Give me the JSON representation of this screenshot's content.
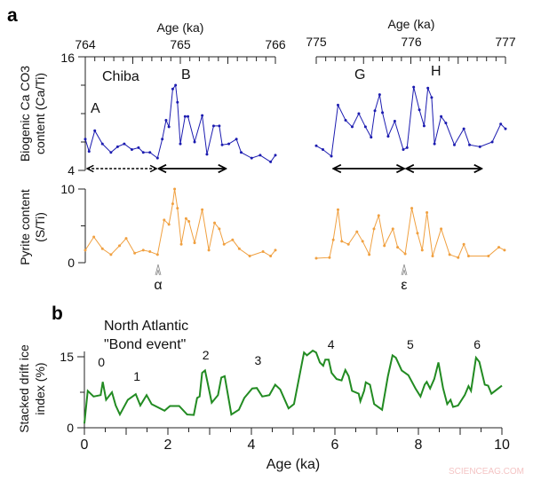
{
  "colors": {
    "ca": "#1c1cb0",
    "pyrite": "#f0a040",
    "drift": "#228b22"
  },
  "chart_data": [
    {
      "type": "line",
      "panel_label": "a",
      "title": "",
      "xlabel": "Age (ka)",
      "ylabel_line1": "Biogenic Ca CO3",
      "ylabel_line2": "content (Ca/Ti)",
      "xlim_left": [
        764,
        766
      ],
      "xlim_right": [
        775,
        777
      ],
      "ylim": [
        4,
        16
      ],
      "xticks_left": [
        "764",
        "765",
        "766"
      ],
      "xticks_right": [
        "775",
        "776",
        "777"
      ],
      "yticks": [
        "4",
        "16"
      ],
      "annotations": {
        "site": "Chiba",
        "A": "A",
        "B": "B",
        "G": "G",
        "H": "H"
      },
      "series": [
        {
          "segment": "left",
          "x": [
            764.0,
            764.04,
            764.1,
            764.18,
            764.27,
            764.34,
            764.41,
            764.49,
            764.56,
            764.61,
            764.68,
            764.76,
            764.81,
            764.85,
            764.88,
            764.92,
            764.95,
            764.97,
            765.0,
            765.05,
            765.08,
            765.15,
            765.23,
            765.28,
            765.35,
            765.41,
            765.44,
            765.51,
            765.59,
            765.64,
            765.75,
            765.84,
            765.95,
            766.0
          ],
          "y": [
            7.3,
            6.0,
            8.2,
            6.8,
            5.9,
            6.5,
            6.8,
            6.2,
            6.4,
            5.9,
            5.9,
            5.3,
            7.3,
            9.3,
            8.6,
            12.6,
            13.0,
            11.2,
            6.8,
            9.7,
            9.7,
            7.0,
            9.8,
            5.7,
            8.7,
            8.7,
            6.7,
            6.8,
            7.3,
            5.9,
            5.3,
            5.6,
            4.9,
            5.6
          ]
        },
        {
          "segment": "right",
          "x": [
            775.0,
            775.07,
            775.16,
            775.23,
            775.31,
            775.38,
            775.45,
            775.52,
            775.58,
            775.62,
            775.67,
            775.7,
            775.76,
            775.83,
            775.92,
            775.96,
            776.03,
            776.09,
            776.14,
            776.18,
            776.22,
            776.25,
            776.32,
            776.37,
            776.46,
            776.56,
            776.62,
            776.73,
            776.86,
            776.95,
            777.0
          ],
          "y": [
            6.6,
            6.2,
            5.5,
            10.9,
            9.3,
            8.6,
            10.0,
            8.6,
            7.5,
            10.3,
            12.0,
            10.1,
            7.6,
            9.2,
            6.2,
            6.4,
            12.8,
            10.4,
            8.7,
            12.7,
            11.7,
            6.8,
            9.7,
            9.0,
            6.7,
            8.4,
            6.7,
            6.5,
            7.0,
            8.9,
            8.4
          ]
        }
      ]
    },
    {
      "type": "line",
      "title": "",
      "ylabel_line1": "Pyrite content",
      "ylabel_line2": "(S/Ti)",
      "ylim": [
        0,
        10
      ],
      "yticks": [
        "0",
        "10"
      ],
      "markers": {
        "alpha": "α",
        "epsilon": "ε"
      },
      "series": [
        {
          "segment": "left",
          "x": [
            764.0,
            764.09,
            764.18,
            764.27,
            764.36,
            764.43,
            764.52,
            764.61,
            764.68,
            764.76,
            764.83,
            764.88,
            764.92,
            764.94,
            764.97,
            765.01,
            765.06,
            765.09,
            765.15,
            765.23,
            765.3,
            765.36,
            765.41,
            765.46,
            765.55,
            765.62,
            765.73,
            765.87,
            765.95,
            766.0
          ],
          "y": [
            1.7,
            3.5,
            1.9,
            1.1,
            2.3,
            3.3,
            1.3,
            1.7,
            1.5,
            1.1,
            5.8,
            5.2,
            8.0,
            10.0,
            7.4,
            2.5,
            6.0,
            5.6,
            2.7,
            7.2,
            1.7,
            5.4,
            4.6,
            2.5,
            3.1,
            1.9,
            0.9,
            1.5,
            0.9,
            1.7
          ]
        },
        {
          "segment": "right",
          "x": [
            775.0,
            775.14,
            775.18,
            775.23,
            775.27,
            775.34,
            775.43,
            775.49,
            775.56,
            775.61,
            775.66,
            775.72,
            775.81,
            775.86,
            775.94,
            776.01,
            776.07,
            776.12,
            776.17,
            776.23,
            776.32,
            776.41,
            776.5,
            776.56,
            776.61,
            776.82,
            776.93,
            776.99
          ],
          "y": [
            0.6,
            0.7,
            3.1,
            7.2,
            2.9,
            2.5,
            4.2,
            2.9,
            1.1,
            4.6,
            6.4,
            2.3,
            4.6,
            2.1,
            1.2,
            7.4,
            4.0,
            1.7,
            6.8,
            0.9,
            4.6,
            1.1,
            0.7,
            2.5,
            0.9,
            0.9,
            2.1,
            1.7
          ]
        }
      ]
    },
    {
      "type": "line",
      "panel_label": "b",
      "title_line1": "North Atlantic",
      "title_line2": "\"Bond event\"",
      "xlabel": "Age (ka)",
      "ylabel_line1": "Stacked drift ice",
      "ylabel_line2": "index (%)",
      "xlim": [
        0,
        10
      ],
      "ylim": [
        0,
        17
      ],
      "xticks": [
        "0",
        "2",
        "4",
        "6",
        "8",
        "10"
      ],
      "yticks": [
        "0",
        "15"
      ],
      "events": [
        {
          "label": "0",
          "x": 0.45
        },
        {
          "label": "1",
          "x": 1.3
        },
        {
          "label": "2",
          "x": 2.95
        },
        {
          "label": "3",
          "x": 4.2
        },
        {
          "label": "4",
          "x": 5.95
        },
        {
          "label": "5",
          "x": 7.85
        },
        {
          "label": "6",
          "x": 9.45
        }
      ],
      "series": [
        {
          "x": [
            0,
            0.08,
            0.22,
            0.39,
            0.44,
            0.52,
            0.66,
            0.75,
            0.85,
            1.04,
            1.23,
            1.34,
            1.49,
            1.61,
            1.92,
            2.05,
            2.27,
            2.46,
            2.62,
            2.7,
            2.76,
            2.82,
            2.89,
            3.05,
            3.2,
            3.28,
            3.36,
            3.52,
            3.7,
            3.83,
            4.02,
            4.13,
            4.26,
            4.43,
            4.57,
            4.69,
            4.89,
            5.02,
            5.26,
            5.33,
            5.47,
            5.55,
            5.64,
            5.72,
            5.77,
            5.85,
            5.92,
            6.04,
            6.16,
            6.25,
            6.33,
            6.41,
            6.57,
            6.61,
            6.7,
            6.74,
            6.84,
            6.94,
            7.13,
            7.27,
            7.38,
            7.46,
            7.6,
            7.76,
            7.93,
            8.05,
            8.15,
            8.2,
            8.28,
            8.38,
            8.48,
            8.59,
            8.69,
            8.77,
            8.83,
            8.95,
            9.11,
            9.2,
            9.26,
            9.38,
            9.46,
            9.59,
            9.67,
            9.75,
            10.0
          ],
          "y": [
            0.9,
            7.8,
            6.6,
            6.9,
            9.7,
            5.9,
            7.5,
            4.7,
            2.8,
            5.9,
            7.1,
            4.7,
            6.9,
            5.0,
            3.6,
            4.6,
            4.6,
            2.8,
            2.7,
            6.3,
            6.6,
            11.6,
            12.1,
            5.3,
            6.9,
            10.6,
            10.9,
            2.8,
            3.8,
            6.3,
            8.3,
            8.4,
            6.6,
            6.9,
            9.1,
            8.1,
            4.1,
            5.0,
            15.9,
            15.3,
            16.3,
            15.9,
            13.8,
            13.1,
            14.4,
            14.4,
            11.6,
            10.3,
            10.0,
            12.2,
            10.9,
            7.8,
            7.2,
            5.6,
            7.8,
            9.6,
            9.1,
            5.0,
            3.8,
            10.9,
            15.3,
            14.8,
            12.1,
            11.1,
            8.3,
            6.6,
            9.1,
            9.7,
            8.3,
            10.3,
            13.8,
            8.4,
            5.0,
            5.9,
            4.4,
            4.7,
            6.9,
            8.8,
            7.8,
            14.8,
            13.9,
            9.1,
            8.9,
            7.2,
            8.9
          ]
        }
      ]
    }
  ],
  "watermark": "SCIENCEAG.COM"
}
